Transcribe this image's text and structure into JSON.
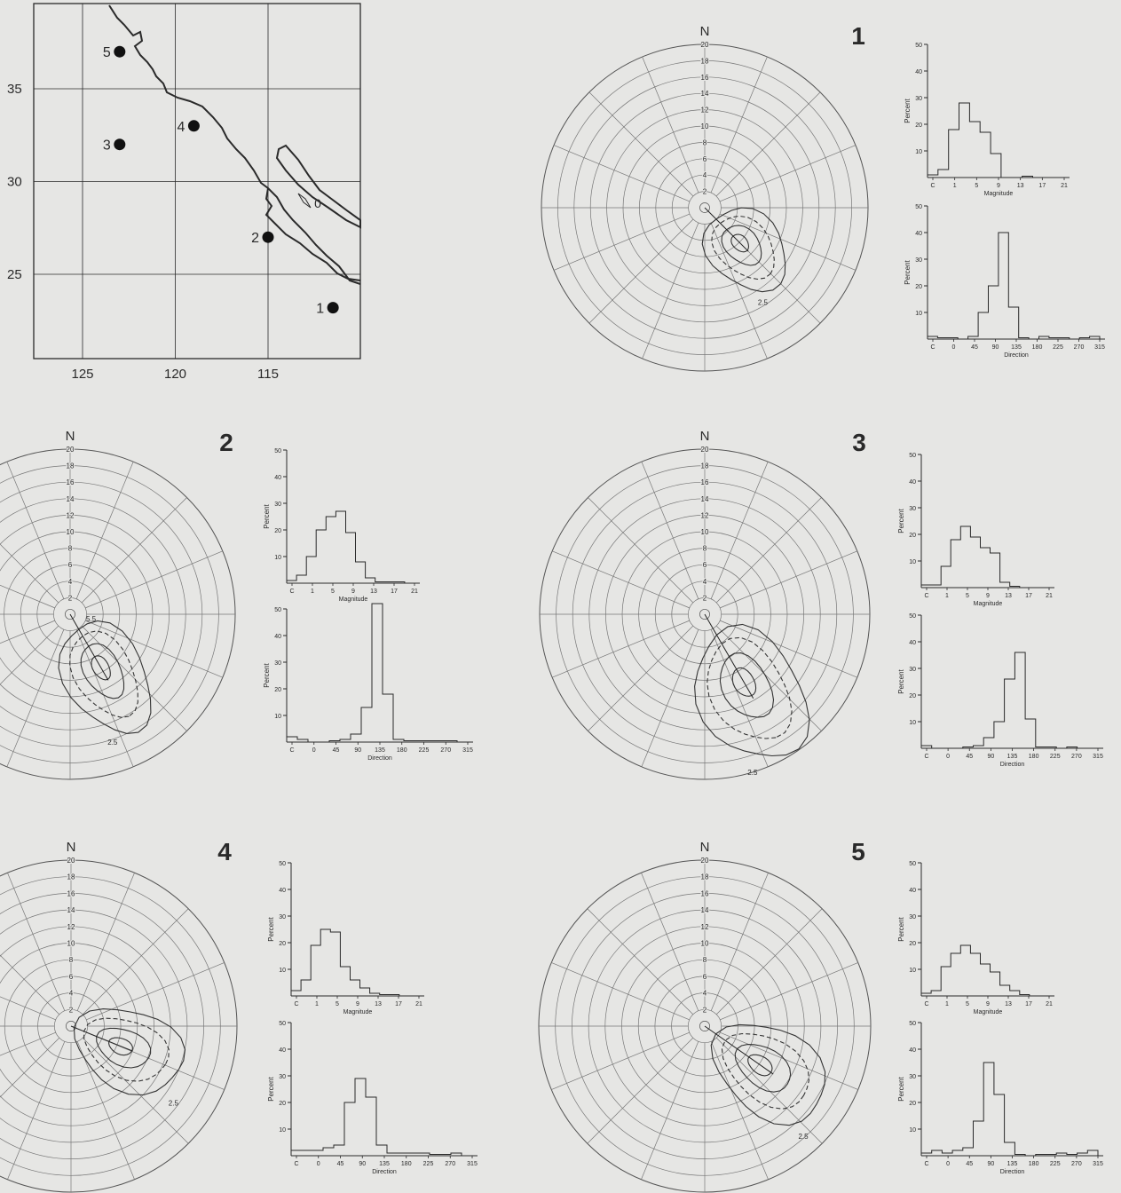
{
  "map": {
    "lon_ticks": [
      "125",
      "120",
      "115"
    ],
    "lat_ticks": [
      "35",
      "30",
      "25"
    ],
    "stations": [
      {
        "label": "1",
        "lon": 111.5,
        "lat": 23.2
      },
      {
        "label": "2",
        "lon": 115.0,
        "lat": 27.0
      },
      {
        "label": "3",
        "lon": 123.0,
        "lat": 32.0
      },
      {
        "label": "4",
        "lon": 119.0,
        "lat": 33.0
      },
      {
        "label": "5",
        "lon": 123.0,
        "lat": 37.0
      }
    ],
    "contour_label": "0"
  },
  "wind_rose": {
    "north_label": "N",
    "ring_labels": [
      "2",
      "4",
      "6",
      "8",
      "10",
      "12",
      "14",
      "16",
      "18",
      "20"
    ],
    "contour_label": "2.5",
    "small_label": "5.5"
  },
  "histograms": {
    "y_label": "Percent",
    "y_ticks": [
      "10",
      "20",
      "30",
      "40",
      "50"
    ],
    "magnitude_x_label": "Magnitude",
    "magnitude_ticks": [
      "C",
      "1",
      "5",
      "9",
      "13",
      "17",
      "21"
    ],
    "direction_x_label": "Direction",
    "direction_ticks": [
      "C",
      "0",
      "45",
      "90",
      "135",
      "180",
      "225",
      "270",
      "315"
    ]
  },
  "chart_data": [
    {
      "type": "bar",
      "station": "1",
      "magnitude": {
        "values": [
          1,
          3,
          18,
          28,
          21,
          17,
          9,
          0,
          0,
          0.5,
          0,
          0,
          0
        ]
      },
      "direction": {
        "values": [
          1,
          0.5,
          0.5,
          0,
          1,
          10,
          20,
          40,
          12,
          0.5,
          0,
          1,
          0.5,
          0.5,
          0,
          0.5,
          1
        ]
      },
      "ylim": [
        0,
        50
      ]
    },
    {
      "type": "bar",
      "station": "2",
      "magnitude": {
        "values": [
          1,
          3,
          10,
          20,
          25,
          27,
          19,
          8,
          2,
          0.5,
          0.5,
          0.5,
          0
        ]
      },
      "direction": {
        "values": [
          2,
          1,
          0,
          0,
          0.5,
          1,
          3,
          13,
          52,
          18,
          1,
          0.5,
          0.5,
          0.5,
          0.5,
          0.5,
          0
        ]
      },
      "ylim": [
        0,
        50
      ]
    },
    {
      "type": "bar",
      "station": "3",
      "magnitude": {
        "values": [
          1,
          1,
          8,
          18,
          23,
          19,
          15,
          13,
          2,
          0.5,
          0,
          0,
          0
        ]
      },
      "direction": {
        "values": [
          1,
          0,
          0,
          0,
          0.5,
          1,
          4,
          10,
          26,
          36,
          11,
          0.5,
          0.5,
          0,
          0.5,
          0,
          0
        ]
      },
      "ylim": [
        0,
        50
      ]
    },
    {
      "type": "bar",
      "station": "4",
      "magnitude": {
        "values": [
          2,
          6,
          19,
          25,
          24,
          11,
          6,
          3,
          1,
          0.5,
          0.5,
          0,
          0
        ]
      },
      "direction": {
        "values": [
          2,
          2,
          2,
          3,
          4,
          20,
          29,
          22,
          4,
          1,
          1,
          1,
          1,
          0.5,
          0.5,
          1,
          0
        ]
      },
      "ylim": [
        0,
        50
      ]
    },
    {
      "type": "bar",
      "station": "5",
      "magnitude": {
        "values": [
          1,
          2,
          11,
          16,
          19,
          16,
          12,
          9,
          4,
          2,
          0.5,
          0,
          0
        ]
      },
      "direction": {
        "values": [
          1,
          2,
          1,
          2,
          3,
          13,
          35,
          23,
          5,
          0.5,
          0,
          0.5,
          0.5,
          1,
          0.5,
          1,
          2
        ]
      },
      "ylim": [
        0,
        50
      ]
    }
  ]
}
